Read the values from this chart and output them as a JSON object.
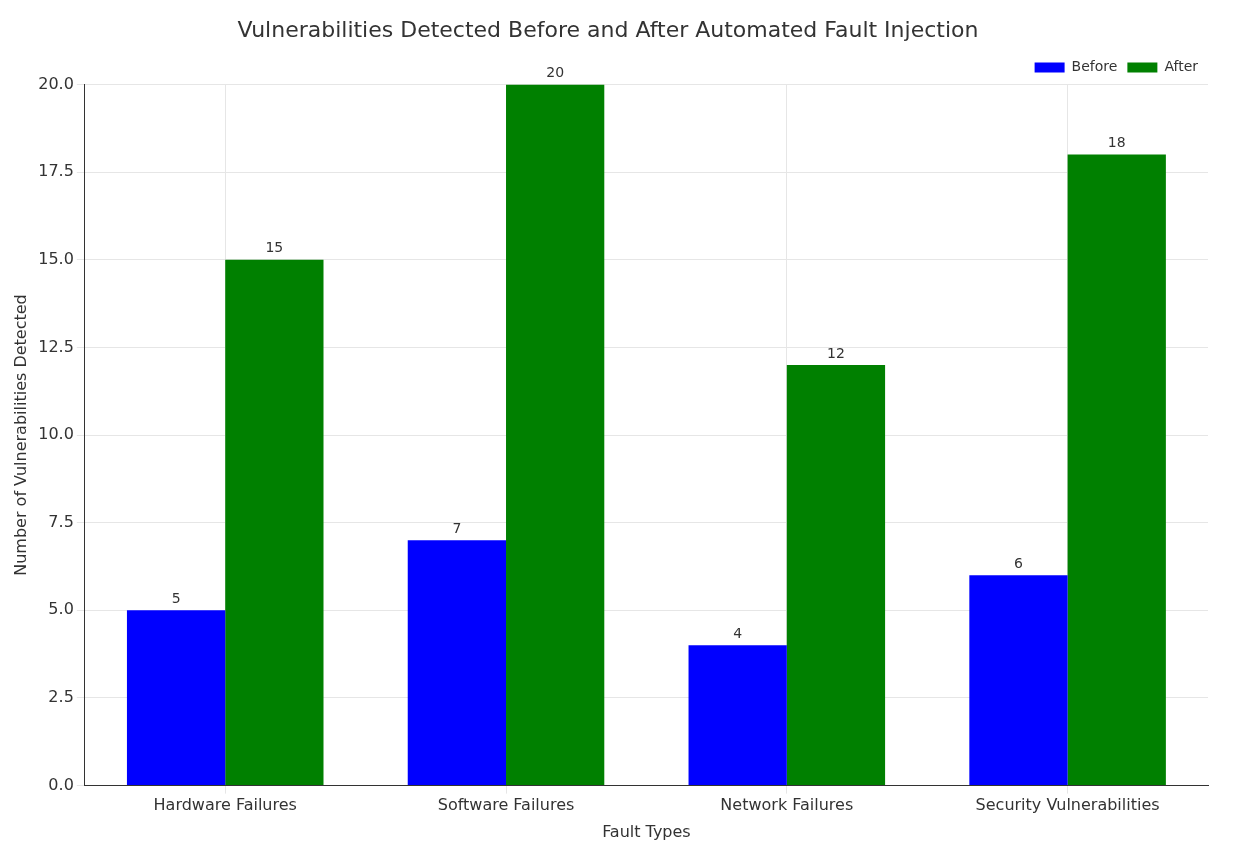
{
  "chart_data": {
    "type": "bar",
    "title": "Vulnerabilities Detected Before and After Automated Fault Injection",
    "xlabel": "Fault Types",
    "ylabel": "Number of Vulnerabilities Detected",
    "categories": [
      "Hardware Failures",
      "Software Failures",
      "Network Failures",
      "Security Vulnerabilities"
    ],
    "series": [
      {
        "name": "Before",
        "color": "#0000ff",
        "values": [
          5,
          7,
          4,
          6
        ]
      },
      {
        "name": "After",
        "color": "#008000",
        "values": [
          15,
          20,
          12,
          18
        ]
      }
    ],
    "ylim": [
      0,
      20
    ],
    "yticks": [
      {
        "value": 0,
        "label": "0.0"
      },
      {
        "value": 2.5,
        "label": "2.5"
      },
      {
        "value": 5,
        "label": "5.0"
      },
      {
        "value": 7.5,
        "label": "7.5"
      },
      {
        "value": 10,
        "label": "10.0"
      },
      {
        "value": 12.5,
        "label": "12.5"
      },
      {
        "value": 15,
        "label": "15.0"
      },
      {
        "value": 17.5,
        "label": "17.5"
      },
      {
        "value": 20,
        "label": "20.0"
      }
    ],
    "grid": true,
    "legend": "top right",
    "data_labels": true
  }
}
